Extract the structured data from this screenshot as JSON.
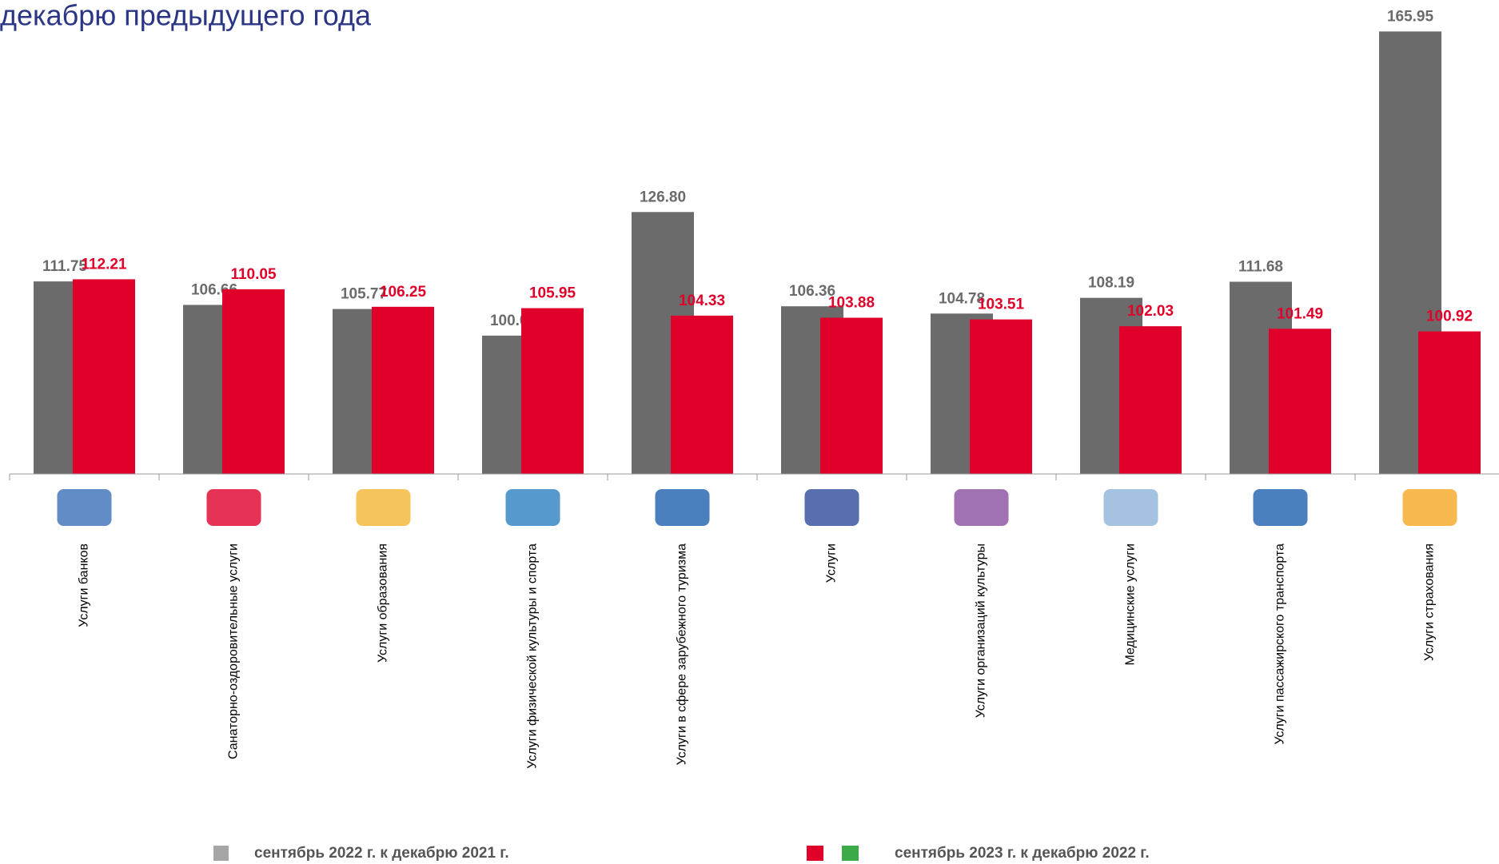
{
  "chart_data": {
    "type": "bar",
    "title": "декабрю предыдущего года",
    "categories": [
      "Услуги банков",
      "Санаторно-оздоровительные услуги",
      "Услуги образования",
      "Услуги физической культуры и спорта",
      "Услуги в сфере зарубежного туризма",
      "Услуги",
      "Услуги организаций культуры",
      "Медицинские услуги",
      "Услуги пассажирского транспорта",
      "Услуги страхования"
    ],
    "series": [
      {
        "name": "сентябрь 2022 г. к декабрю 2021 г.",
        "color": "#6b6b6b",
        "values": [
          111.75,
          106.66,
          105.77,
          100.0,
          126.8,
          106.36,
          104.78,
          108.19,
          111.68,
          165.95
        ],
        "value_labels": [
          "111.75",
          "106.66",
          "105.77",
          "100.00",
          "126.80",
          "106.36",
          "104.78",
          "108.19",
          "111.68",
          "165.95"
        ]
      },
      {
        "name": "сентябрь 2023 г. к декабрю 2022 г.",
        "color": "#e0002a",
        "values": [
          112.21,
          110.05,
          106.25,
          105.95,
          104.33,
          103.88,
          103.51,
          102.03,
          101.49,
          100.92
        ],
        "value_labels": [
          "112.21",
          "110.05",
          "106.25",
          "105.95",
          "104.33",
          "103.88",
          "103.51",
          "102.03",
          "101.49",
          "100.92"
        ]
      }
    ],
    "ylim": [
      70,
      170
    ],
    "grid": false
  }
}
